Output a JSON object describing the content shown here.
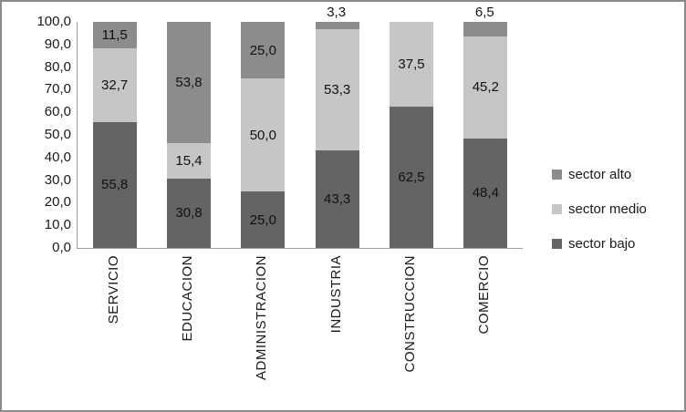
{
  "chart_data": {
    "type": "bar",
    "stacked": true,
    "title": "",
    "xlabel": "",
    "ylabel": "",
    "ylim": [
      0,
      100
    ],
    "grid": false,
    "decimal_separator": ",",
    "categories": [
      "SERVICIO",
      "EDUCACION",
      "ADMINISTRACION",
      "INDUSTRIA",
      "CONSTRUCCION",
      "COMERCIO"
    ],
    "series": [
      {
        "name": "sector bajo",
        "color": "#646464",
        "values": [
          55.8,
          30.8,
          25.0,
          43.3,
          62.5,
          48.4
        ],
        "labels": [
          "55,8",
          "30,8",
          "25,0",
          "43,3",
          "62,5",
          "48,4"
        ]
      },
      {
        "name": "sector medio",
        "color": "#c6c6c6",
        "values": [
          32.7,
          15.4,
          50.0,
          53.3,
          37.5,
          45.2
        ],
        "labels": [
          "32,7",
          "15,4",
          "50,0",
          "53,3",
          "37,5",
          "45,2"
        ]
      },
      {
        "name": "sector alto",
        "color": "#8c8c8c",
        "values": [
          11.5,
          53.8,
          25.0,
          3.3,
          0.0,
          6.5
        ],
        "labels": [
          "11,5",
          "53,8",
          "25,0",
          "3,3",
          "",
          "6,5"
        ]
      }
    ],
    "yticks": [
      "0,0",
      "10,0",
      "20,0",
      "30,0",
      "40,0",
      "50,0",
      "60,0",
      "70,0",
      "80,0",
      "90,0",
      "100,0"
    ],
    "legend_position": "right",
    "legend": [
      {
        "label": "sector alto",
        "color": "#8c8c8c"
      },
      {
        "label": "sector medio",
        "color": "#c6c6c6"
      },
      {
        "label": "sector bajo",
        "color": "#646464"
      }
    ]
  }
}
